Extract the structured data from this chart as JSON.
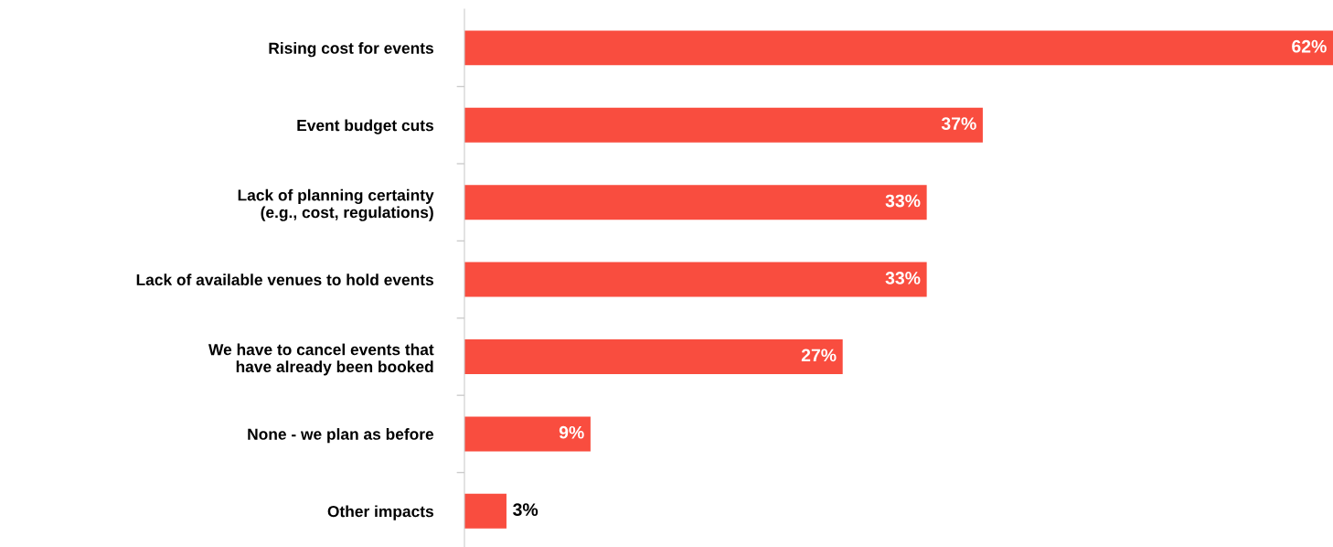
{
  "chart_data": {
    "type": "bar",
    "orientation": "horizontal",
    "categories": [
      "Rising cost for events",
      "Event budget cuts",
      "Lack of planning certainty\n(e.g., cost, regulations)",
      "Lack of available venues to hold events",
      "We have to cancel events that\nhave already been booked",
      "None - we plan as before",
      "Other impacts"
    ],
    "values": [
      62,
      37,
      33,
      33,
      27,
      9,
      3
    ],
    "value_labels": [
      "62%",
      "37%",
      "33%",
      "33%",
      "27%",
      "9%",
      "3%"
    ],
    "color": "#f94d3f",
    "grid": false,
    "legend": false
  }
}
